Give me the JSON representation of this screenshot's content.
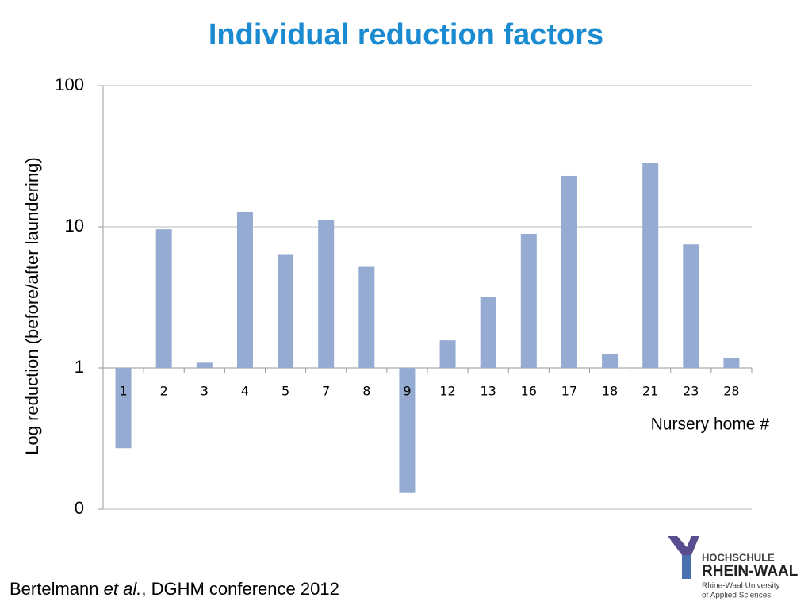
{
  "chart_data": {
    "type": "bar",
    "title": "Individual reduction factors",
    "y_label": "Log reduction (before/after laundering)",
    "x_label": "Nursery home #",
    "categories": [
      "1",
      "2",
      "3",
      "4",
      "5",
      "7",
      "8",
      "9",
      "12",
      "13",
      "16",
      "17",
      "18",
      "21",
      "23",
      "28"
    ],
    "values": [
      0.27,
      9.6,
      1.09,
      12.8,
      6.4,
      11.1,
      5.2,
      0.13,
      1.57,
      3.2,
      8.9,
      22.9,
      1.25,
      28.5,
      7.5,
      1.17
    ],
    "color": "#95abd2",
    "log_scale": true,
    "x_axis_crosses": 1,
    "ylim": [
      0.1,
      100
    ],
    "yticks": [
      {
        "value": 0.1,
        "label": "0"
      },
      1,
      10,
      100
    ],
    "grid": true
  },
  "footer": {
    "author": "Bertelmann",
    "etal": "et al.",
    "rest": ", DGHM conference 2012"
  },
  "logo": {
    "line1": "HOCHSCHULE",
    "line2": "RHEIN-WAAL",
    "line3": "Rhine-Waal University",
    "line4": "of Applied Sciences"
  }
}
